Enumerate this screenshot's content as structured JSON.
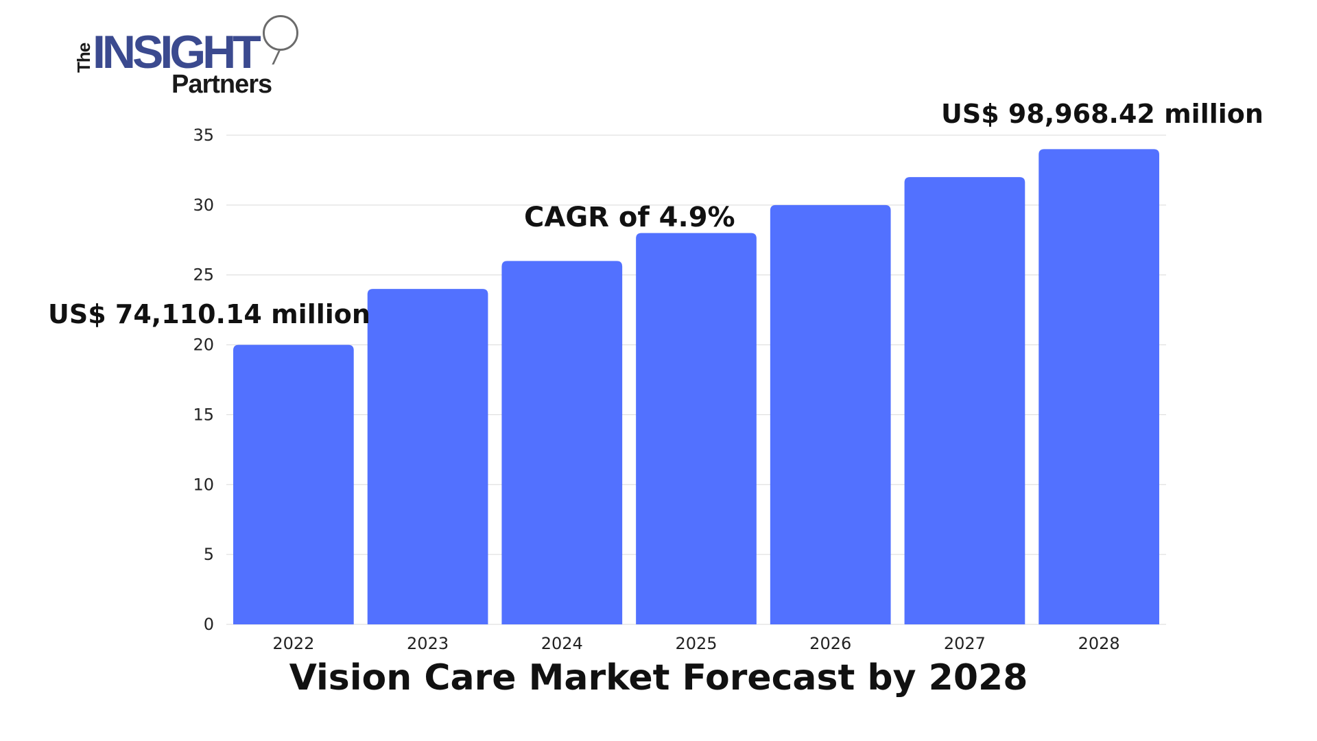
{
  "logo": {
    "the": "The",
    "insight": "INSIGHT",
    "partners": "Partners"
  },
  "annotations": {
    "start_value": "US$ 74,110.14 million",
    "cagr": "CAGR of 4.9%",
    "end_value": "US$ 98,968.42 million"
  },
  "colors": {
    "bar": "#5271ff",
    "grid": "#d9d9d9",
    "text": "#111111"
  },
  "chart_data": {
    "type": "bar",
    "title": "Vision Care Market Forecast by 2028",
    "xlabel": "",
    "ylabel": "",
    "categories": [
      "2022",
      "2023",
      "2024",
      "2025",
      "2026",
      "2027",
      "2028"
    ],
    "values": [
      20,
      24,
      26,
      28,
      30,
      32,
      34
    ],
    "ylim": [
      0,
      35
    ],
    "yticks": [
      0,
      5,
      10,
      15,
      20,
      25,
      30,
      35
    ],
    "grid": true
  }
}
